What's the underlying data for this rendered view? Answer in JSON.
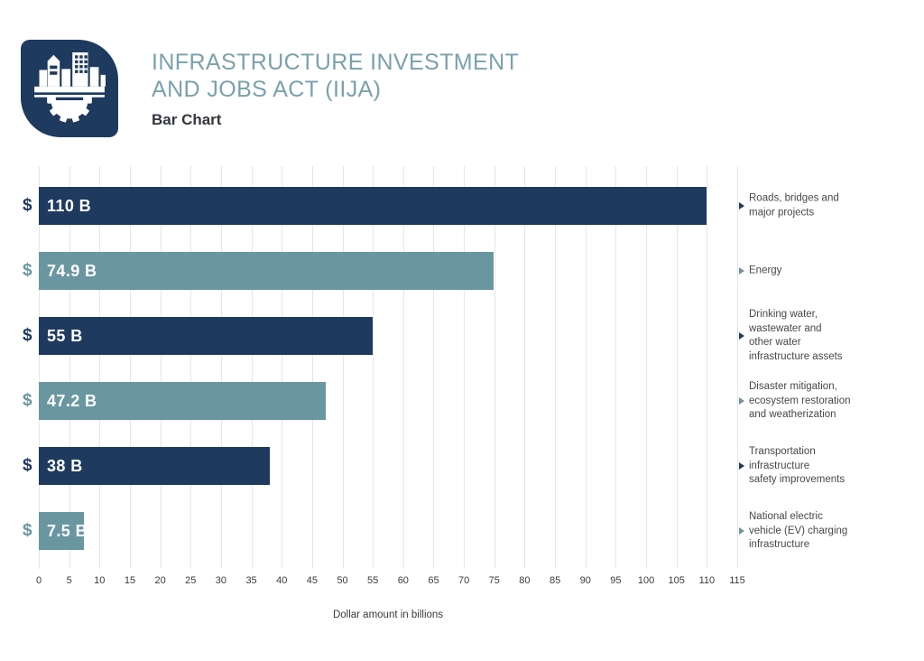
{
  "header": {
    "title_line1": "INFRASTRUCTURE INVESTMENT",
    "title_line2": "AND JOBS ACT (IIJA)",
    "subtitle": "Bar Chart",
    "logo_icon": "city-buildings-gear-icon"
  },
  "colors": {
    "navy": "#1f3a5f",
    "teal": "#6996a1",
    "title_teal": "#7aa1ac",
    "dark_text": "#32373d",
    "grid": "#e6e6ea",
    "tick_text": "#3a3a3a",
    "label_text": "#45484c",
    "background": "#ffffff",
    "bar_value_text": "#ffffff"
  },
  "chart_data": {
    "type": "bar",
    "orientation": "horizontal",
    "title": "Infrastructure Investment and Jobs Act (IIJA) — Bar Chart",
    "xlabel": "Dollar amount in billions",
    "ylabel": "",
    "xlim": [
      0,
      115
    ],
    "xticks": [
      0,
      5,
      10,
      15,
      20,
      25,
      30,
      35,
      40,
      45,
      50,
      55,
      60,
      65,
      70,
      75,
      80,
      85,
      90,
      95,
      100,
      105,
      110,
      115
    ],
    "grid": true,
    "legend": false,
    "currency_prefix": "$",
    "bars": [
      {
        "category": "Roads, bridges and major projects",
        "label_lines": [
          "Roads, bridges and",
          "major projects"
        ],
        "value": 110,
        "value_label": "110 B",
        "color": "navy"
      },
      {
        "category": "Energy",
        "label_lines": [
          "Energy"
        ],
        "value": 74.9,
        "value_label": "74.9 B",
        "color": "teal"
      },
      {
        "category": "Drinking water, wastewater and other water infrastructure assets",
        "label_lines": [
          "Drinking water,",
          "wastewater and",
          "other water",
          "infrastructure assets"
        ],
        "value": 55,
        "value_label": "55 B",
        "color": "navy"
      },
      {
        "category": "Disaster mitigation, ecosystem restoration and weatherization",
        "label_lines": [
          "Disaster mitigation,",
          "ecosystem restoration",
          "and weatherization"
        ],
        "value": 47.2,
        "value_label": "47.2 B",
        "color": "teal"
      },
      {
        "category": "Transportation infrastructure safety improvements",
        "label_lines": [
          "Transportation",
          "infrastructure",
          "safety improvements"
        ],
        "value": 38,
        "value_label": "38 B",
        "color": "navy"
      },
      {
        "category": "National electric vehicle (EV) charging infrastructure",
        "label_lines": [
          "National electric",
          "vehicle (EV) charging",
          "infrastructure"
        ],
        "value": 7.5,
        "value_label": "7.5 B",
        "color": "teal"
      }
    ]
  }
}
